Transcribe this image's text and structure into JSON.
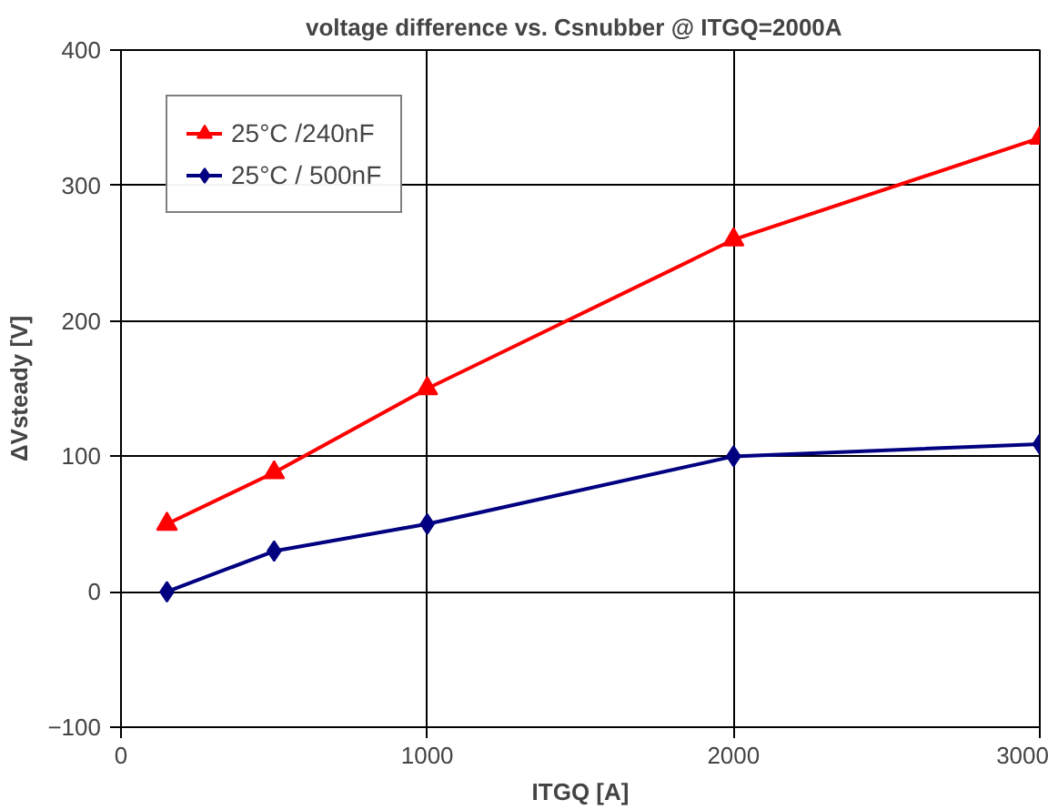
{
  "chart_data": {
    "type": "line",
    "title": "voltage difference vs. Csnubber   @ ITGQ=2000A",
    "xlabel": "ITGQ [A]",
    "ylabel": "ΔVsteady [V]",
    "series": [
      {
        "name": "25°C /240nF",
        "color": "#ff0000",
        "marker": "triangle",
        "x": [
          150,
          500,
          1000,
          2000,
          3000
        ],
        "values": [
          50,
          88,
          150,
          260,
          335
        ]
      },
      {
        "name": "25°C / 500nF",
        "color": "#000080",
        "marker": "diamond",
        "x": [
          150,
          500,
          1000,
          2000,
          3000
        ],
        "values": [
          0,
          30,
          50,
          100,
          109
        ]
      }
    ],
    "xlim": [
      0,
      3000
    ],
    "xticks": [
      0,
      1000,
      2000,
      3000
    ],
    "ylim": [
      -100,
      400
    ],
    "yticks": [
      -100,
      0,
      100,
      200,
      300,
      400
    ],
    "grid": true,
    "legend": "top left",
    "line_style": "solid"
  }
}
